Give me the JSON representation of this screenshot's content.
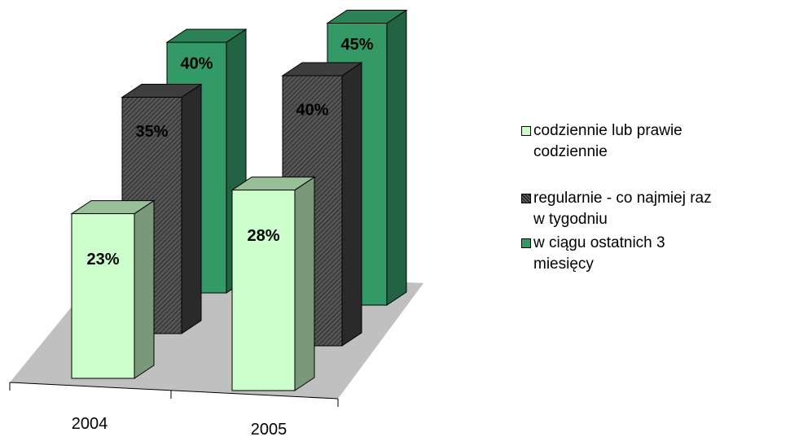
{
  "chart_data": {
    "type": "bar3d",
    "categories": [
      "2004",
      "2005"
    ],
    "series": [
      {
        "name": "codziennie lub prawie codziennie",
        "color": "#ccffcc",
        "values": [
          23,
          28
        ],
        "value_labels": [
          "23%",
          "28%"
        ]
      },
      {
        "name": "regularnie - co najmiej raz w tygodniu",
        "color": "#4d4d4d",
        "values": [
          35,
          40
        ],
        "value_labels": [
          "35%",
          "40%"
        ]
      },
      {
        "name": "w ciągu ostatnich 3 miesięcy",
        "color": "#339966",
        "values": [
          40,
          45
        ],
        "value_labels": [
          "40%",
          "45%"
        ]
      }
    ],
    "legend": "right"
  }
}
